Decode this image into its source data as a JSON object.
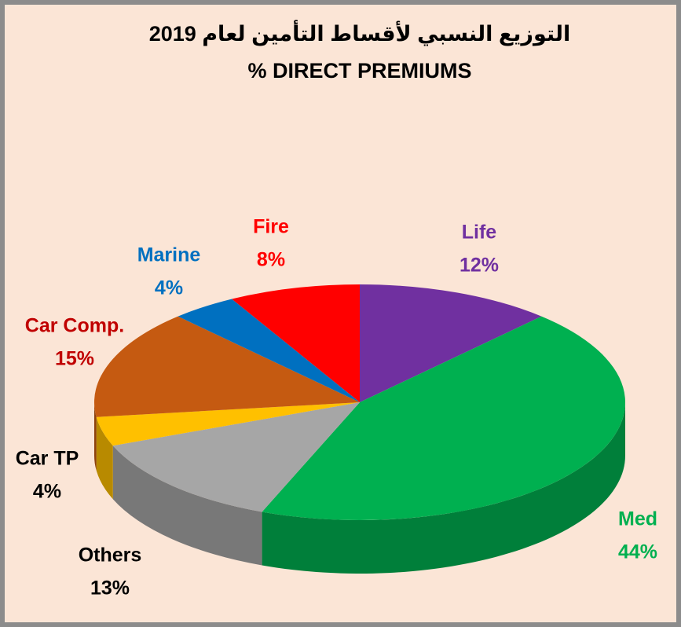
{
  "chart_data": {
    "type": "pie3d",
    "title": "التوزيع النسبي لأقساط التأمين لعام 2019",
    "subtitle": "% DIRECT PREMIUMS",
    "categories": [
      "Life",
      "Med",
      "Others",
      "Car TP",
      "Car Comp.",
      "Marine",
      "Fire"
    ],
    "values": [
      12,
      44,
      13,
      4,
      15,
      4,
      8
    ],
    "value_labels": [
      "12%",
      "44%",
      "13%",
      "4%",
      "15%",
      "4%",
      "8%"
    ],
    "colors": [
      "#7030a0",
      "#00b050",
      "#a6a6a6",
      "#ffc000",
      "#c55a11",
      "#0070c0",
      "#ff0000"
    ],
    "label_colors": [
      "#7030a0",
      "#00b050",
      "#000000",
      "#000000",
      "#c00000",
      "#0070c0",
      "#ff0000"
    ]
  }
}
